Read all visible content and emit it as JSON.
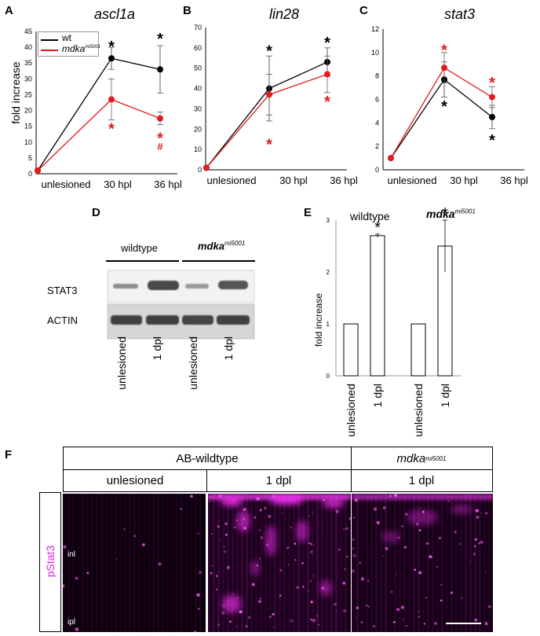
{
  "panels": {
    "A": "A",
    "B": "B",
    "C": "C",
    "D": "D",
    "E": "E",
    "F": "F"
  },
  "line_colors": {
    "wt": "#000000",
    "mdka": "#e41a1c"
  },
  "chart_data": [
    {
      "id": "A",
      "type": "line",
      "title": "ascl1a",
      "ylabel": "fold increase",
      "categories": [
        "unlesioned",
        "30 hpl",
        "36 hpl"
      ],
      "ylim": [
        0,
        45
      ],
      "yticks": [
        0,
        5,
        10,
        15,
        20,
        25,
        30,
        35,
        40,
        45
      ],
      "legend": {
        "placement": "top-left",
        "entries": [
          "wt",
          "mdka"
        ],
        "mdka_sup": "mi5001"
      },
      "series": [
        {
          "name": "wt",
          "color": "#000000",
          "values": [
            1,
            36.5,
            33
          ],
          "err": [
            0,
            3.5,
            7.5
          ]
        },
        {
          "name": "mdka",
          "color": "#e41a1c",
          "values": [
            1,
            23.5,
            17.5
          ],
          "err": [
            0,
            6.5,
            2
          ]
        }
      ],
      "annotations": [
        {
          "text": "*",
          "color": "#000000",
          "cat": 1,
          "y": 40.5
        },
        {
          "text": "*",
          "color": "#000000",
          "cat": 2,
          "y": 43
        },
        {
          "text": "*",
          "color": "#e41a1c",
          "cat": 1,
          "y": 14.5
        },
        {
          "text": "*",
          "color": "#e41a1c",
          "cat": 2,
          "y": 11.5
        },
        {
          "text": "#",
          "color": "#e41a1c",
          "cat": 2,
          "y": 8.5
        }
      ]
    },
    {
      "id": "B",
      "type": "line",
      "title": "lin28",
      "ylabel": "",
      "categories": [
        "unlesioned",
        "30 hpl",
        "36 hpl"
      ],
      "ylim": [
        0,
        70
      ],
      "yticks": [
        0,
        10,
        20,
        30,
        40,
        50,
        60,
        70
      ],
      "series": [
        {
          "name": "wt",
          "color": "#000000",
          "values": [
            1,
            40,
            53
          ],
          "err": [
            0,
            16,
            7
          ]
        },
        {
          "name": "mdka",
          "color": "#e41a1c",
          "values": [
            1,
            37,
            47
          ],
          "err": [
            0,
            10,
            9
          ]
        }
      ],
      "annotations": [
        {
          "text": "*",
          "color": "#000000",
          "cat": 1,
          "y": 59
        },
        {
          "text": "*",
          "color": "#000000",
          "cat": 2,
          "y": 63
        },
        {
          "text": "*",
          "color": "#e41a1c",
          "cat": 1,
          "y": 13
        },
        {
          "text": "*",
          "color": "#e41a1c",
          "cat": 2,
          "y": 34
        }
      ]
    },
    {
      "id": "C",
      "type": "line",
      "title": "stat3",
      "ylabel": "",
      "categories": [
        "unlesioned",
        "30 hpl",
        "36 hpl"
      ],
      "ylim": [
        0,
        12
      ],
      "yticks": [
        0,
        2,
        4,
        6,
        8,
        10,
        12
      ],
      "series": [
        {
          "name": "wt",
          "color": "#000000",
          "values": [
            1,
            7.7,
            4.5
          ],
          "err": [
            0,
            1.5,
            1
          ]
        },
        {
          "name": "mdka",
          "color": "#e41a1c",
          "values": [
            1,
            8.7,
            6.2
          ],
          "err": [
            0,
            1.3,
            0.9
          ]
        }
      ],
      "annotations": [
        {
          "text": "*",
          "color": "#e41a1c",
          "cat": 1,
          "y": 10.3
        },
        {
          "text": "*",
          "color": "#e41a1c",
          "cat": 2,
          "y": 7.5
        },
        {
          "text": "*",
          "color": "#000000",
          "cat": 1,
          "y": 5.5
        },
        {
          "text": "*",
          "color": "#000000",
          "cat": 2,
          "y": 2.6
        }
      ]
    },
    {
      "id": "E",
      "type": "bar",
      "title": "",
      "ylabel": "fold increase",
      "categories": [
        "unlesioned",
        "1 dpl",
        "unlesioned",
        "1 dpl"
      ],
      "group_labels": [
        "wildtype",
        "mdka"
      ],
      "group_sup": "mi5001",
      "ylim": [
        0,
        3
      ],
      "yticks": [
        0,
        1,
        2,
        3
      ],
      "series": [
        {
          "values": [
            1,
            2.7,
            1,
            2.5
          ],
          "err": [
            0,
            0.03,
            0,
            0.5
          ]
        }
      ],
      "annotations": [
        {
          "text": "*",
          "color": "#000000",
          "cat": 1,
          "y": 2.85
        },
        {
          "text": "*",
          "color": "#000000",
          "cat": 3,
          "y": 3.12
        }
      ]
    }
  ],
  "western": {
    "groups": [
      "wildtype",
      "mdka"
    ],
    "group_sup": "mi5001",
    "rows": [
      "STAT3",
      "ACTIN"
    ],
    "lanes": [
      "unlesioned",
      "1 dpl",
      "unlesioned",
      "1 dpl"
    ]
  },
  "imaging": {
    "header_groups": [
      "AB-wildtype",
      "mdka"
    ],
    "header_sup": "mi5001",
    "conditions": [
      "unlesioned",
      "1 dpl",
      "1 dpl"
    ],
    "row_label": "pStat3",
    "layers": [
      "inl",
      "ipl"
    ],
    "stain_color": "#e020e0"
  }
}
